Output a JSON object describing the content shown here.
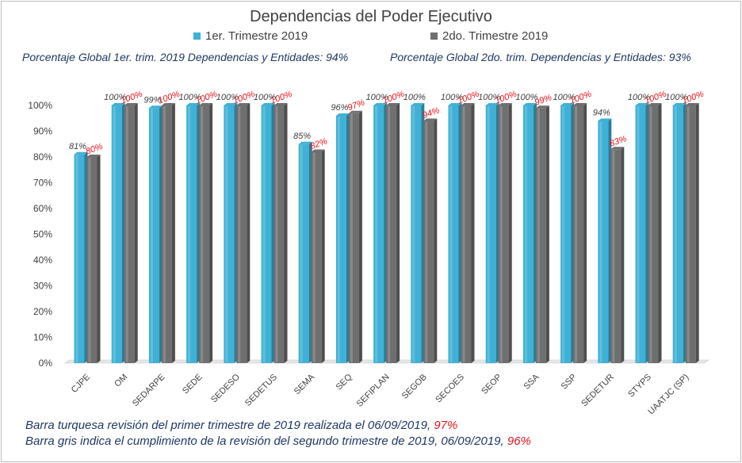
{
  "title": "Dependencias del Poder Ejecutivo",
  "legend": {
    "q1": "1er. Trimestre 2019",
    "q2": "2do. Trimestre 2019"
  },
  "global": {
    "q1": "Porcentaje Global 1er. trim. 2019 Dependencias y Entidades: 94%",
    "q2": "Porcentaje Global  2do. trim. Dependencias y Entidades: 93%"
  },
  "notes": {
    "line1_text": "Barra turquesa  revisión  del  primer  trimestre  de  2019  realizada  el   06/09/2019,",
    "line1_value": "97%",
    "line2_text": "Barra gris indica el cumplimiento  de la revisión  del  segundo  trimestre  de  2019,   06/09/2019,",
    "line2_value": "96%"
  },
  "colors": {
    "q1": "#3fb1d6",
    "q2": "#6f6f6f",
    "q2_label": "#e8141c",
    "q1_label": "#404040"
  },
  "chart_data": {
    "type": "bar",
    "categories": [
      "CJPE",
      "OM",
      "SEDARPE",
      "SEDE",
      "SEDESO",
      "SEDETUS",
      "SEMA",
      "SEQ",
      "SEFIPLAN",
      "SEGOB",
      "SECOES",
      "SEOP",
      "SSA",
      "SSP",
      "SEDETUR",
      "STYPS",
      "UAATJC (SP)"
    ],
    "series": [
      {
        "name": "1er. Trimestre 2019",
        "values": [
          81,
          100,
          99,
          100,
          100,
          100,
          85,
          96,
          100,
          100,
          100,
          100,
          100,
          100,
          94,
          100,
          100
        ]
      },
      {
        "name": "2do. Trimestre 2019",
        "values": [
          80,
          100,
          100,
          100,
          100,
          100,
          82,
          97,
          100,
          94,
          100,
          100,
          99,
          100,
          83,
          100,
          100
        ]
      }
    ],
    "ylim": [
      0,
      100
    ],
    "yticks": [
      "0%",
      "10%",
      "20%",
      "30%",
      "40%",
      "50%",
      "60%",
      "70%",
      "80%",
      "90%",
      "100%"
    ],
    "unit": "%",
    "grid": false,
    "legend_position": "top"
  }
}
